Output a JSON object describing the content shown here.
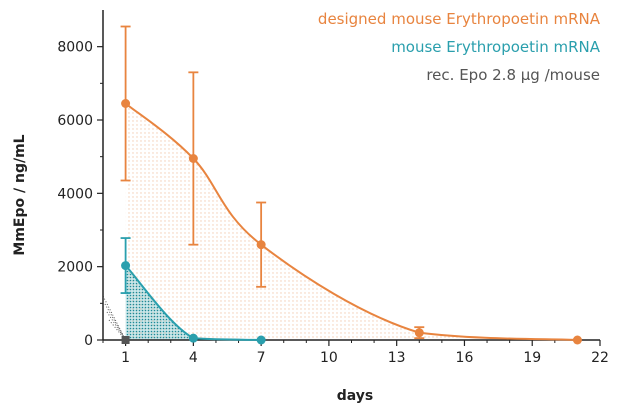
{
  "colors": {
    "designed": "#e8843f",
    "native": "#2a9fad",
    "rec": "#555555",
    "axis": "#222222"
  },
  "chart_data": {
    "type": "line",
    "xlabel": "days",
    "ylabel": "MmEpo / ng/mL",
    "xlim": [
      0,
      22
    ],
    "ylim": [
      0,
      9000
    ],
    "x_ticks": [
      1,
      4,
      7,
      10,
      13,
      16,
      19,
      22
    ],
    "y_ticks": [
      0,
      2000,
      4000,
      6000,
      8000
    ],
    "grid": false,
    "legend_position": "top-right",
    "series": [
      {
        "name": "designed mouse Erythropoetin mRNA",
        "color": "#e8843f",
        "x": [
          1,
          4,
          7,
          14,
          21
        ],
        "y": [
          6450,
          4950,
          2600,
          200,
          0
        ],
        "err": [
          2100,
          2350,
          1150,
          150,
          0
        ],
        "fill": "dotted"
      },
      {
        "name": "mouse Erythropoetin mRNA",
        "color": "#2a9fad",
        "x": [
          1,
          4,
          7
        ],
        "y": [
          2030,
          50,
          0
        ],
        "err": [
          750,
          0,
          0
        ],
        "fill": "hatched"
      },
      {
        "name": "rec. Epo 2.8 µg /mouse",
        "color": "#555555",
        "x": [
          1
        ],
        "y": [
          0
        ],
        "err": [
          0
        ],
        "fill": "dotted-lines"
      }
    ]
  }
}
